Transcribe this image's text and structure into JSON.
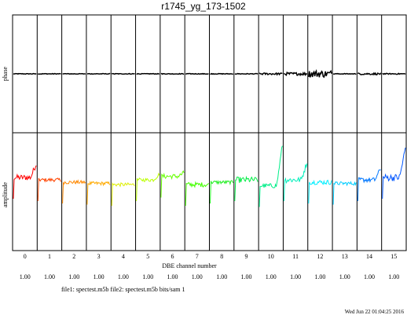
{
  "chart_data": {
    "type": "line",
    "title": "r1745_yg_173-1502",
    "xlabel": "DBE channel number",
    "panels": [
      {
        "ylabel": "phase"
      },
      {
        "ylabel": "amplitude"
      }
    ],
    "channels": [
      "0",
      "1",
      "2",
      "3",
      "4",
      "5",
      "6",
      "7",
      "8",
      "9",
      "10",
      "11",
      "12",
      "13",
      "14",
      "15"
    ],
    "scale_labels": [
      "1.00",
      "1.00",
      "1.00",
      "1.00",
      "1.00",
      "1.00",
      "1.00",
      "1.00",
      "1.00",
      "1.00",
      "1.00",
      "1.00",
      "1.00",
      "1.00",
      "1.00",
      "1.00"
    ],
    "footer": "file1: spectest.m5b file2: spectest.m5b bits/sam 1",
    "timestamp": "Wed Jun 22 01:04:25 2016",
    "series": [
      {
        "channel": "0",
        "color": "#ff0000",
        "level": 0.62,
        "edge_peak": 0.12,
        "noise": 0.05,
        "phase_noise": 0.003
      },
      {
        "channel": "1",
        "color": "#ff4400",
        "level": 0.6,
        "edge_peak": 0.0,
        "noise": 0.03,
        "phase_noise": 0.003
      },
      {
        "channel": "2",
        "color": "#ff8800",
        "level": 0.58,
        "edge_peak": 0.0,
        "noise": 0.03,
        "phase_noise": 0.003
      },
      {
        "channel": "3",
        "color": "#ffaa00",
        "level": 0.57,
        "edge_peak": 0.0,
        "noise": 0.03,
        "phase_noise": 0.003
      },
      {
        "channel": "4",
        "color": "#ddee00",
        "level": 0.56,
        "edge_peak": 0.0,
        "noise": 0.03,
        "phase_noise": 0.003
      },
      {
        "channel": "5",
        "color": "#bbff00",
        "level": 0.6,
        "edge_peak": 0.05,
        "noise": 0.03,
        "phase_noise": 0.003
      },
      {
        "channel": "6",
        "color": "#66ff00",
        "level": 0.63,
        "edge_peak": 0.03,
        "noise": 0.04,
        "phase_noise": 0.003
      },
      {
        "channel": "7",
        "color": "#44ff00",
        "level": 0.56,
        "edge_peak": 0.0,
        "noise": 0.04,
        "phase_noise": 0.003
      },
      {
        "channel": "8",
        "color": "#22ee22",
        "level": 0.58,
        "edge_peak": 0.0,
        "noise": 0.03,
        "phase_noise": 0.003
      },
      {
        "channel": "9",
        "color": "#00ee44",
        "level": 0.6,
        "edge_peak": 0.0,
        "noise": 0.05,
        "phase_noise": 0.003
      },
      {
        "channel": "10",
        "color": "#00ee88",
        "level": 0.55,
        "edge_peak": 0.35,
        "noise": 0.04,
        "phase_noise": 0.008
      },
      {
        "channel": "11",
        "color": "#00eebb",
        "level": 0.6,
        "edge_peak": 0.15,
        "noise": 0.05,
        "phase_noise": 0.012
      },
      {
        "channel": "12",
        "color": "#00eeff",
        "level": 0.58,
        "edge_peak": 0.0,
        "noise": 0.04,
        "phase_noise": 0.03
      },
      {
        "channel": "13",
        "color": "#00ccff",
        "level": 0.57,
        "edge_peak": 0.0,
        "noise": 0.03,
        "phase_noise": 0.003
      },
      {
        "channel": "14",
        "color": "#0077ff",
        "level": 0.6,
        "edge_peak": 0.1,
        "noise": 0.04,
        "phase_noise": 0.008
      },
      {
        "channel": "15",
        "color": "#0055ff",
        "level": 0.62,
        "edge_peak": 0.25,
        "noise": 0.06,
        "phase_noise": 0.004
      }
    ]
  }
}
